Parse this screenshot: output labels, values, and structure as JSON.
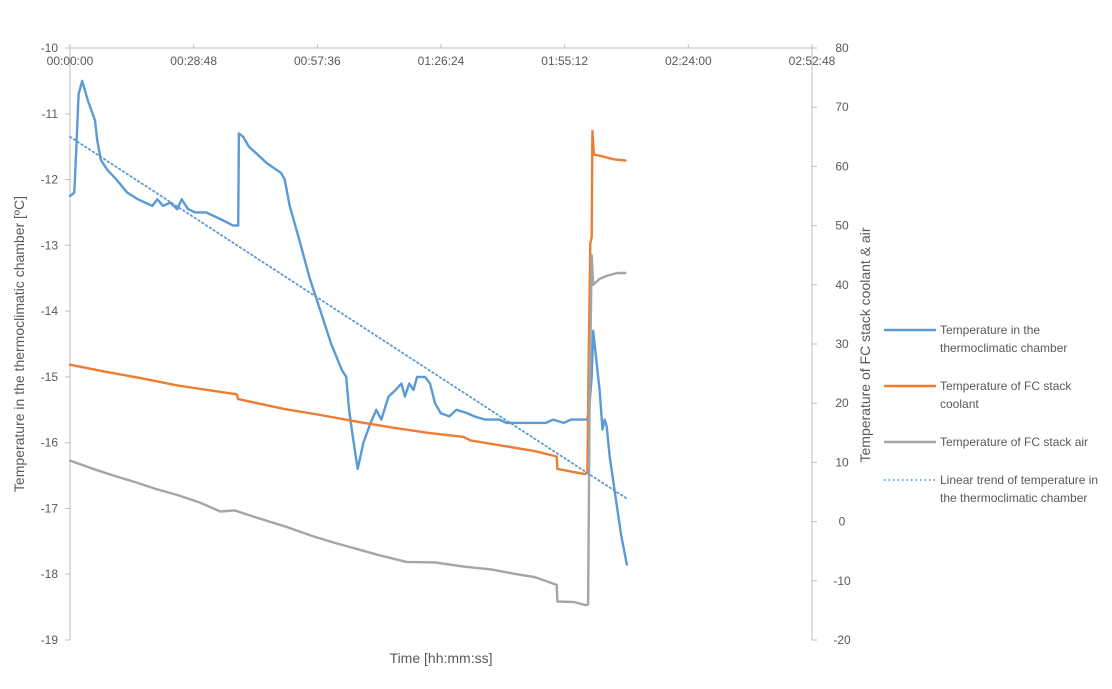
{
  "chart_data": {
    "type": "line",
    "x_axis": {
      "label": "Time [hh:mm:ss]",
      "range_seconds": [
        0,
        10368
      ],
      "ticks": [
        "00:00:00",
        "00:28:48",
        "00:57:36",
        "01:26:24",
        "01:55:12",
        "02:24:00",
        "02:52:48"
      ],
      "tick_values_seconds": [
        0,
        1728,
        3456,
        5184,
        6912,
        8640,
        10368
      ],
      "position": "top"
    },
    "y_left": {
      "label": "Temperature in the thermoclimatic chamber [ºC]",
      "range": [
        -19,
        -10
      ],
      "ticks": [
        "-10",
        "-11",
        "-12",
        "-13",
        "-14",
        "-15",
        "-16",
        "-17",
        "-18",
        "-19"
      ],
      "tick_values": [
        -10,
        -11,
        -12,
        -13,
        -14,
        -15,
        -16,
        -17,
        -18,
        -19
      ]
    },
    "y_right": {
      "label": "Temperature of FC stack coolant & air",
      "range": [
        -20,
        80
      ],
      "ticks": [
        "80",
        "70",
        "60",
        "50",
        "40",
        "30",
        "20",
        "10",
        "0",
        "-10",
        "-20"
      ],
      "tick_values": [
        80,
        70,
        60,
        50,
        40,
        30,
        20,
        10,
        0,
        -10,
        -20
      ]
    },
    "grid": false,
    "legend_position": "right",
    "series": [
      {
        "name": "Temperature in the thermoclimatic chamber",
        "axis": "left",
        "color": "#5B9BD5",
        "style": "solid",
        "points": [
          [
            0,
            -12.25
          ],
          [
            60,
            -12.2
          ],
          [
            90,
            -11.5
          ],
          [
            120,
            -10.7
          ],
          [
            170,
            -10.5
          ],
          [
            250,
            -10.8
          ],
          [
            350,
            -11.1
          ],
          [
            380,
            -11.4
          ],
          [
            430,
            -11.7
          ],
          [
            520,
            -11.85
          ],
          [
            650,
            -12.0
          ],
          [
            800,
            -12.2
          ],
          [
            950,
            -12.3
          ],
          [
            1150,
            -12.4
          ],
          [
            1220,
            -12.3
          ],
          [
            1300,
            -12.4
          ],
          [
            1400,
            -12.35
          ],
          [
            1500,
            -12.45
          ],
          [
            1560,
            -12.3
          ],
          [
            1650,
            -12.45
          ],
          [
            1750,
            -12.5
          ],
          [
            1900,
            -12.5
          ],
          [
            2100,
            -12.6
          ],
          [
            2280,
            -12.7
          ],
          [
            2350,
            -12.7
          ],
          [
            2360,
            -11.3
          ],
          [
            2420,
            -11.35
          ],
          [
            2500,
            -11.5
          ],
          [
            2600,
            -11.6
          ],
          [
            2750,
            -11.75
          ],
          [
            2950,
            -11.9
          ],
          [
            3000,
            -12.0
          ],
          [
            3070,
            -12.4
          ],
          [
            3200,
            -12.9
          ],
          [
            3350,
            -13.5
          ],
          [
            3500,
            -14.0
          ],
          [
            3650,
            -14.5
          ],
          [
            3800,
            -14.9
          ],
          [
            3860,
            -15.0
          ],
          [
            3900,
            -15.5
          ],
          [
            3950,
            -15.9
          ],
          [
            4020,
            -16.4
          ],
          [
            4100,
            -16.0
          ],
          [
            4200,
            -15.7
          ],
          [
            4280,
            -15.5
          ],
          [
            4350,
            -15.65
          ],
          [
            4450,
            -15.3
          ],
          [
            4550,
            -15.2
          ],
          [
            4630,
            -15.1
          ],
          [
            4680,
            -15.3
          ],
          [
            4740,
            -15.1
          ],
          [
            4800,
            -15.2
          ],
          [
            4850,
            -15.0
          ],
          [
            4960,
            -15.0
          ],
          [
            5030,
            -15.1
          ],
          [
            5100,
            -15.4
          ],
          [
            5180,
            -15.55
          ],
          [
            5300,
            -15.6
          ],
          [
            5400,
            -15.5
          ],
          [
            5550,
            -15.55
          ],
          [
            5650,
            -15.6
          ],
          [
            5800,
            -15.65
          ],
          [
            6000,
            -15.65
          ],
          [
            6100,
            -15.7
          ],
          [
            6300,
            -15.7
          ],
          [
            6500,
            -15.7
          ],
          [
            6650,
            -15.7
          ],
          [
            6750,
            -15.65
          ],
          [
            6900,
            -15.7
          ],
          [
            7000,
            -15.65
          ],
          [
            7230,
            -15.65
          ],
          [
            7260,
            -15.4
          ],
          [
            7290,
            -15.0
          ],
          [
            7310,
            -14.3
          ],
          [
            7330,
            -14.5
          ],
          [
            7400,
            -15.2
          ],
          [
            7440,
            -15.8
          ],
          [
            7470,
            -15.65
          ],
          [
            7500,
            -15.75
          ],
          [
            7540,
            -16.2
          ],
          [
            7620,
            -16.8
          ],
          [
            7700,
            -17.4
          ],
          [
            7780,
            -17.85
          ]
        ]
      },
      {
        "name": "Temperature of FC stack coolant",
        "axis": "right",
        "color": "#ED7D31",
        "style": "solid",
        "points": [
          [
            0,
            26.5
          ],
          [
            500,
            25.3
          ],
          [
            1000,
            24.2
          ],
          [
            1500,
            23.0
          ],
          [
            2000,
            22.1
          ],
          [
            2330,
            21.5
          ],
          [
            2350,
            20.7
          ],
          [
            3000,
            19.0
          ],
          [
            3500,
            18.0
          ],
          [
            4000,
            16.9
          ],
          [
            4500,
            15.9
          ],
          [
            5000,
            15.0
          ],
          [
            5500,
            14.3
          ],
          [
            5600,
            13.7
          ],
          [
            6000,
            12.9
          ],
          [
            6500,
            11.9
          ],
          [
            6800,
            11.0
          ],
          [
            6810,
            8.9
          ],
          [
            7200,
            8.0
          ],
          [
            7230,
            8.4
          ],
          [
            7250,
            30
          ],
          [
            7270,
            47
          ],
          [
            7290,
            48
          ],
          [
            7300,
            66
          ],
          [
            7320,
            62
          ],
          [
            7400,
            61.8
          ],
          [
            7500,
            61.5
          ],
          [
            7600,
            61.2
          ],
          [
            7760,
            61.0
          ]
        ]
      },
      {
        "name": "Temperature of FC stack air",
        "axis": "right",
        "color": "#A5A5A5",
        "style": "solid",
        "points": [
          [
            0,
            10.3
          ],
          [
            300,
            9.0
          ],
          [
            600,
            7.8
          ],
          [
            900,
            6.7
          ],
          [
            1200,
            5.5
          ],
          [
            1500,
            4.5
          ],
          [
            1800,
            3.3
          ],
          [
            2100,
            1.7
          ],
          [
            2300,
            1.9
          ],
          [
            2600,
            0.7
          ],
          [
            3000,
            -0.8
          ],
          [
            3400,
            -2.5
          ],
          [
            3700,
            -3.6
          ],
          [
            4000,
            -4.6
          ],
          [
            4300,
            -5.6
          ],
          [
            4700,
            -6.8
          ],
          [
            5100,
            -6.9
          ],
          [
            5500,
            -7.6
          ],
          [
            5900,
            -8.1
          ],
          [
            6200,
            -8.8
          ],
          [
            6500,
            -9.4
          ],
          [
            6800,
            -10.7
          ],
          [
            6810,
            -13.5
          ],
          [
            7050,
            -13.6
          ],
          [
            7200,
            -14.1
          ],
          [
            7240,
            -14.0
          ],
          [
            7260,
            20
          ],
          [
            7290,
            45
          ],
          [
            7310,
            40
          ],
          [
            7400,
            41
          ],
          [
            7500,
            41.5
          ],
          [
            7650,
            42
          ],
          [
            7760,
            42
          ]
        ]
      },
      {
        "name": "Linear trend of temperature in the thermoclimatic chamber",
        "axis": "left",
        "color": "#5B9BD5",
        "style": "dotted",
        "points": [
          [
            0,
            -11.35
          ],
          [
            7780,
            -16.85
          ]
        ]
      }
    ]
  }
}
